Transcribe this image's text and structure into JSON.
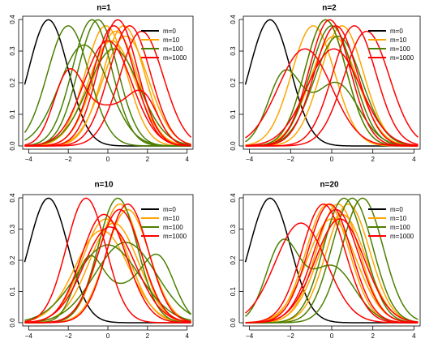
{
  "colors": {
    "m=0": "#000000",
    "m=10": "#FFA500",
    "m=100": "#4C7F00",
    "m=1000": "#FF0000"
  },
  "chart_data": [
    {
      "type": "line",
      "title": "n=1",
      "xlim": [
        -4.3,
        4.3
      ],
      "ylim": [
        0,
        0.4
      ],
      "xticks": [
        -4,
        -2,
        0,
        2,
        4
      ],
      "yticks": [
        0.0,
        0.1,
        0.2,
        0.3,
        0.4
      ],
      "ytick_labels": [
        "0.0",
        "0.1",
        "0.2",
        "0.3",
        "0.4"
      ],
      "grid": false,
      "legend": {
        "placement": "top-right",
        "entries": [
          "m=0",
          "m=10",
          "m=100",
          "m=1000"
        ]
      },
      "series": [
        {
          "name": "m=0",
          "components": [
            {
              "mean": -3.0,
              "sd": 1.0,
              "weight": 1.0
            }
          ]
        },
        {
          "name": "m=10",
          "components": [
            {
              "mean": 0.4,
              "sd": 1.1,
              "weight": 1.0
            }
          ]
        },
        {
          "name": "m=10",
          "components": [
            {
              "mean": 0.8,
              "sd": 1.05,
              "weight": 1.0
            }
          ]
        },
        {
          "name": "m=10",
          "components": [
            {
              "mean": 0.9,
              "sd": 1.15,
              "weight": 1.0
            }
          ]
        },
        {
          "name": "m=10",
          "components": [
            {
              "mean": -0.1,
              "sd": 1.05,
              "weight": 1.0
            }
          ]
        },
        {
          "name": "m=10",
          "components": [
            {
              "mean": 0.2,
              "sd": 1.2,
              "weight": 1.0
            }
          ]
        },
        {
          "name": "m=100",
          "components": [
            {
              "mean": -2.0,
              "sd": 1.05,
              "weight": 1.0
            }
          ]
        },
        {
          "name": "m=100",
          "components": [
            {
              "mean": -0.8,
              "sd": 1.0,
              "weight": 1.0
            }
          ]
        },
        {
          "name": "m=100",
          "components": [
            {
              "mean": -0.5,
              "sd": 1.0,
              "weight": 1.0
            }
          ]
        },
        {
          "name": "m=100",
          "components": [
            {
              "mean": -1.2,
              "sd": 1.25,
              "weight": 1.0
            }
          ]
        },
        {
          "name": "m=100",
          "components": [
            {
              "mean": 0.3,
              "sd": 1.3,
              "weight": 1.0
            }
          ]
        },
        {
          "name": "m=1000",
          "components": [
            {
              "mean": -2.0,
              "sd": 0.75,
              "weight": 0.4
            },
            {
              "mean": 1.8,
              "sd": 0.75,
              "weight": 0.25
            },
            {
              "mean": 0.0,
              "sd": 1.2,
              "weight": 0.35
            }
          ]
        },
        {
          "name": "m=1000",
          "components": [
            {
              "mean": 0.3,
              "sd": 1.05,
              "weight": 1.0
            }
          ]
        },
        {
          "name": "m=1000",
          "components": [
            {
              "mean": 0.5,
              "sd": 1.0,
              "weight": 1.0
            }
          ]
        },
        {
          "name": "m=1000",
          "components": [
            {
              "mean": 1.1,
              "sd": 1.05,
              "weight": 1.0
            }
          ]
        },
        {
          "name": "m=1000",
          "components": [
            {
              "mean": 1.7,
              "sd": 1.1,
              "weight": 1.0
            }
          ]
        },
        {
          "name": "m=1000",
          "components": [
            {
              "mean": 0.0,
              "sd": 1.2,
              "weight": 1.0
            }
          ]
        }
      ]
    },
    {
      "type": "line",
      "title": "n=2",
      "xlim": [
        -4.3,
        4.3
      ],
      "ylim": [
        0,
        0.4
      ],
      "xticks": [
        -4,
        -2,
        0,
        2,
        4
      ],
      "yticks": [
        0.0,
        0.1,
        0.2,
        0.3,
        0.4
      ],
      "ytick_labels": [
        "0.0",
        "0.1",
        "0.2",
        "0.3",
        "0.4"
      ],
      "grid": false,
      "legend": {
        "placement": "top-right",
        "entries": [
          "m=0",
          "m=10",
          "m=100",
          "m=1000"
        ]
      },
      "series": [
        {
          "name": "m=0",
          "components": [
            {
              "mean": -3.0,
              "sd": 1.0,
              "weight": 1.0
            }
          ]
        },
        {
          "name": "m=10",
          "components": [
            {
              "mean": -0.9,
              "sd": 1.05,
              "weight": 1.0
            }
          ]
        },
        {
          "name": "m=10",
          "components": [
            {
              "mean": -0.3,
              "sd": 1.0,
              "weight": 1.0
            }
          ]
        },
        {
          "name": "m=10",
          "components": [
            {
              "mean": 0.5,
              "sd": 1.05,
              "weight": 1.0
            }
          ]
        },
        {
          "name": "m=10",
          "components": [
            {
              "mean": 0.1,
              "sd": 1.15,
              "weight": 1.0
            }
          ]
        },
        {
          "name": "m=100",
          "components": [
            {
              "mean": -2.3,
              "sd": 0.8,
              "weight": 0.45
            },
            {
              "mean": 0.2,
              "sd": 1.1,
              "weight": 0.55
            }
          ]
        },
        {
          "name": "m=100",
          "components": [
            {
              "mean": -0.3,
              "sd": 1.0,
              "weight": 1.0
            }
          ]
        },
        {
          "name": "m=100",
          "components": [
            {
              "mean": 0.0,
              "sd": 1.05,
              "weight": 1.0
            }
          ]
        },
        {
          "name": "m=100",
          "components": [
            {
              "mean": 0.3,
              "sd": 1.15,
              "weight": 1.0
            }
          ]
        },
        {
          "name": "m=1000",
          "components": [
            {
              "mean": -1.3,
              "sd": 1.3,
              "weight": 1.0
            }
          ]
        },
        {
          "name": "m=1000",
          "components": [
            {
              "mean": -0.1,
              "sd": 1.0,
              "weight": 1.0
            }
          ]
        },
        {
          "name": "m=1000",
          "components": [
            {
              "mean": 0.2,
              "sd": 1.05,
              "weight": 1.0
            }
          ]
        },
        {
          "name": "m=1000",
          "components": [
            {
              "mean": 1.1,
              "sd": 1.05,
              "weight": 1.0
            }
          ]
        },
        {
          "name": "m=1000",
          "components": [
            {
              "mean": 1.7,
              "sd": 1.1,
              "weight": 1.0
            }
          ]
        },
        {
          "name": "m=1000",
          "components": [
            {
              "mean": 0.1,
              "sd": 1.3,
              "weight": 1.0
            }
          ]
        }
      ]
    },
    {
      "type": "line",
      "title": "n=10",
      "xlim": [
        -4.3,
        4.3
      ],
      "ylim": [
        0,
        0.4
      ],
      "xticks": [
        -4,
        -2,
        0,
        2,
        4
      ],
      "yticks": [
        0.0,
        0.1,
        0.2,
        0.3,
        0.4
      ],
      "ytick_labels": [
        "0.0",
        "0.1",
        "0.2",
        "0.3",
        "0.4"
      ],
      "grid": false,
      "legend": {
        "placement": "top-right",
        "entries": [
          "m=0",
          "m=10",
          "m=100",
          "m=1000"
        ]
      },
      "series": [
        {
          "name": "m=0",
          "components": [
            {
              "mean": -3.0,
              "sd": 1.0,
              "weight": 1.0
            }
          ]
        },
        {
          "name": "m=10",
          "components": [
            {
              "mean": -0.1,
              "sd": 1.2,
              "weight": 1.0
            }
          ]
        },
        {
          "name": "m=10",
          "components": [
            {
              "mean": 0.6,
              "sd": 1.05,
              "weight": 1.0
            }
          ]
        },
        {
          "name": "m=10",
          "components": [
            {
              "mean": 1.0,
              "sd": 1.1,
              "weight": 1.0
            }
          ]
        },
        {
          "name": "m=10",
          "components": [
            {
              "mean": -0.3,
              "sd": 1.35,
              "weight": 1.0
            }
          ]
        },
        {
          "name": "m=10",
          "components": [
            {
              "mean": 0.3,
              "sd": 1.25,
              "weight": 1.0
            }
          ]
        },
        {
          "name": "m=100",
          "components": [
            {
              "mean": -1.0,
              "sd": 0.7,
              "weight": 0.3
            },
            {
              "mean": 2.6,
              "sd": 0.8,
              "weight": 0.35
            },
            {
              "mean": 0.8,
              "sd": 1.3,
              "weight": 0.35
            }
          ]
        },
        {
          "name": "m=100",
          "components": [
            {
              "mean": 0.5,
              "sd": 1.0,
              "weight": 1.0
            }
          ]
        },
        {
          "name": "m=100",
          "components": [
            {
              "mean": 0.0,
              "sd": 1.6,
              "weight": 1.0
            }
          ]
        },
        {
          "name": "m=100",
          "components": [
            {
              "mean": 0.9,
              "sd": 1.55,
              "weight": 1.0
            }
          ]
        },
        {
          "name": "m=1000",
          "components": [
            {
              "mean": -1.1,
              "sd": 1.0,
              "weight": 1.0
            }
          ]
        },
        {
          "name": "m=1000",
          "components": [
            {
              "mean": -0.2,
              "sd": 1.15,
              "weight": 1.0
            }
          ]
        },
        {
          "name": "m=1000",
          "components": [
            {
              "mean": 0.6,
              "sd": 1.1,
              "weight": 1.0
            }
          ]
        },
        {
          "name": "m=1000",
          "components": [
            {
              "mean": 1.0,
              "sd": 1.05,
              "weight": 1.0
            }
          ]
        },
        {
          "name": "m=1000",
          "components": [
            {
              "mean": 0.1,
              "sd": 1.3,
              "weight": 1.0
            }
          ]
        }
      ]
    },
    {
      "type": "line",
      "title": "n=20",
      "xlim": [
        -4.3,
        4.3
      ],
      "ylim": [
        0,
        0.4
      ],
      "xticks": [
        -4,
        -2,
        0,
        2,
        4
      ],
      "yticks": [
        0.0,
        0.1,
        0.2,
        0.3,
        0.4
      ],
      "ytick_labels": [
        "0.0",
        "0.1",
        "0.2",
        "0.3",
        "0.4"
      ],
      "grid": false,
      "legend": {
        "placement": "top-right",
        "entries": [
          "m=0",
          "m=10",
          "m=100",
          "m=1000"
        ]
      },
      "series": [
        {
          "name": "m=0",
          "components": [
            {
              "mean": -3.0,
              "sd": 1.0,
              "weight": 1.0
            }
          ]
        },
        {
          "name": "m=10",
          "components": [
            {
              "mean": -0.2,
              "sd": 1.05,
              "weight": 1.0
            }
          ]
        },
        {
          "name": "m=10",
          "components": [
            {
              "mean": 0.3,
              "sd": 1.05,
              "weight": 1.0
            }
          ]
        },
        {
          "name": "m=10",
          "components": [
            {
              "mean": 0.8,
              "sd": 1.05,
              "weight": 1.0
            }
          ]
        },
        {
          "name": "m=10",
          "components": [
            {
              "mean": 0.0,
              "sd": 1.2,
              "weight": 1.0
            }
          ]
        },
        {
          "name": "m=10",
          "components": [
            {
              "mean": 0.5,
              "sd": 1.15,
              "weight": 1.0
            }
          ]
        },
        {
          "name": "m=100",
          "components": [
            {
              "mean": -2.4,
              "sd": 0.8,
              "weight": 0.5
            },
            {
              "mean": 0.0,
              "sd": 1.1,
              "weight": 0.5
            }
          ]
        },
        {
          "name": "m=100",
          "components": [
            {
              "mean": 0.6,
              "sd": 1.0,
              "weight": 1.0
            }
          ]
        },
        {
          "name": "m=100",
          "components": [
            {
              "mean": 1.0,
              "sd": 1.0,
              "weight": 1.0
            }
          ]
        },
        {
          "name": "m=100",
          "components": [
            {
              "mean": 1.5,
              "sd": 1.0,
              "weight": 1.0
            }
          ]
        },
        {
          "name": "m=1000",
          "components": [
            {
              "mean": -1.5,
              "sd": 1.25,
              "weight": 1.0
            }
          ]
        },
        {
          "name": "m=1000",
          "components": [
            {
              "mean": -0.4,
              "sd": 1.05,
              "weight": 1.0
            }
          ]
        },
        {
          "name": "m=1000",
          "components": [
            {
              "mean": -0.1,
              "sd": 1.05,
              "weight": 1.0
            }
          ]
        },
        {
          "name": "m=1000",
          "components": [
            {
              "mean": 0.2,
              "sd": 1.1,
              "weight": 1.0
            }
          ]
        },
        {
          "name": "m=1000",
          "components": [
            {
              "mean": 0.4,
              "sd": 1.2,
              "weight": 1.0
            }
          ]
        }
      ]
    }
  ]
}
